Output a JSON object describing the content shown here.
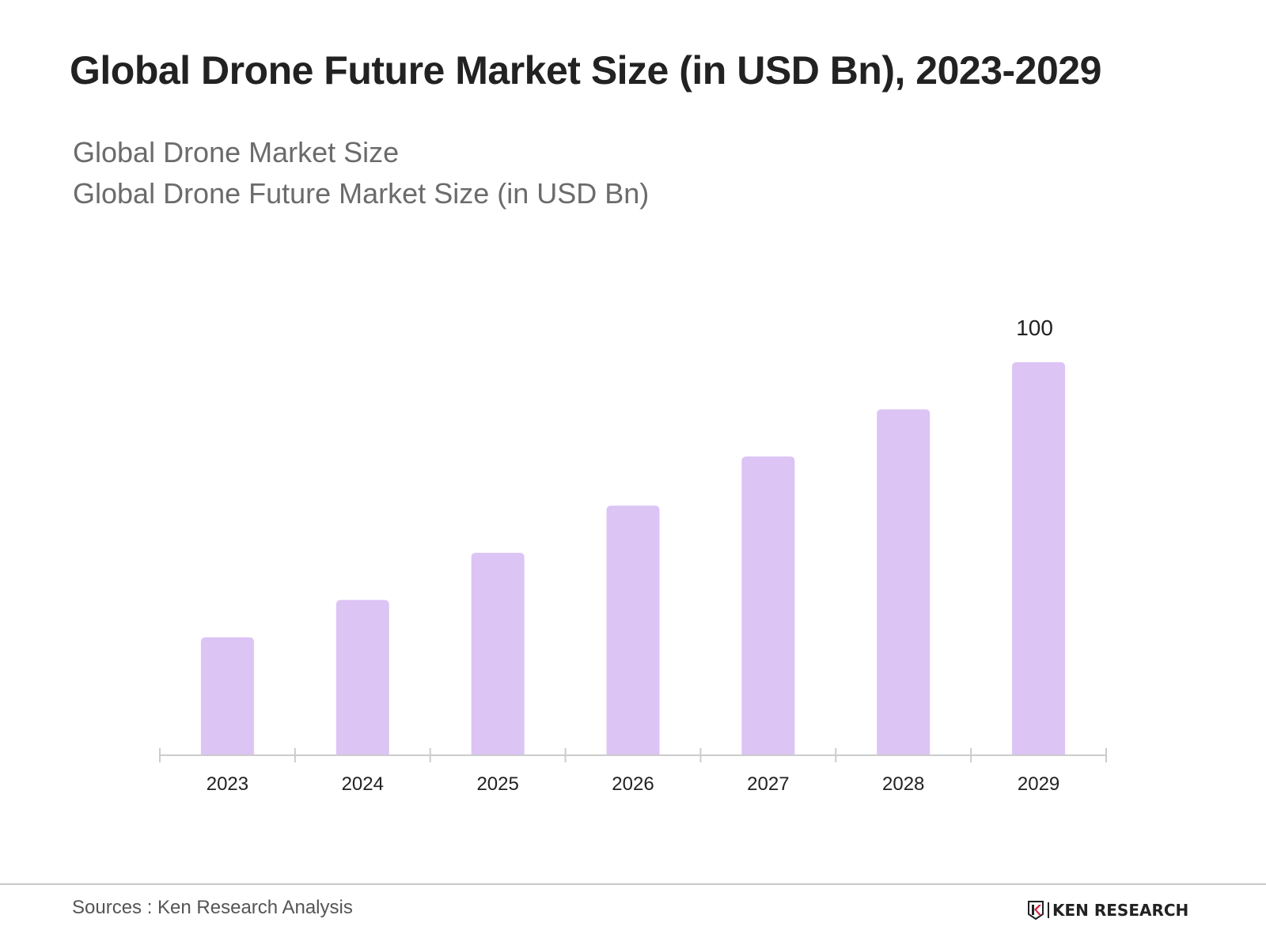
{
  "title": "Global Drone Future Market Size (in USD Bn), 2023-2029",
  "subtitle_lines": [
    "Global Drone Market Size",
    "Global Drone Future Market Size (in USD Bn)"
  ],
  "source": "Sources : Ken Research Analysis",
  "logo": {
    "letter": "K",
    "text": "KEN RESEARCH"
  },
  "colors": {
    "bar": "#dcc4f5",
    "axis": "#cccccc",
    "text": "#222222"
  },
  "chart_data": {
    "type": "bar",
    "title": "Global Drone Future Market Size (in USD Bn), 2023-2029",
    "xlabel": "",
    "ylabel": "",
    "categories": [
      "2023",
      "2024",
      "2025",
      "2026",
      "2027",
      "2028",
      "2029"
    ],
    "values": [
      30,
      39.5,
      51.5,
      63.5,
      76,
      88,
      100
    ],
    "data_labels": [
      "",
      "",
      "",
      "",
      "",
      "",
      "100"
    ],
    "ylim": [
      0,
      100
    ],
    "grid": false,
    "legend": "none"
  }
}
